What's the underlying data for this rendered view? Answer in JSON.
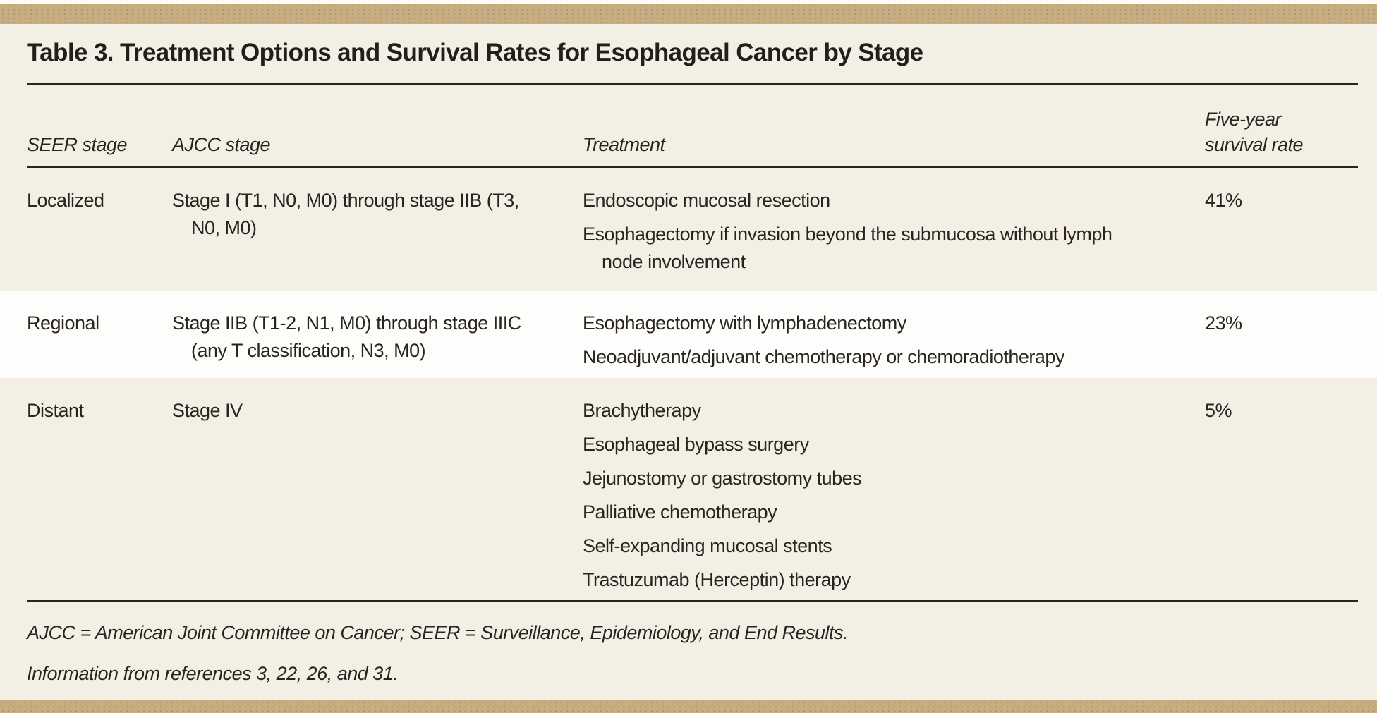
{
  "colors": {
    "page_background": "#f4efe4",
    "accent_bar": "#c8ae7f",
    "highlight_row_background": "#fdfdfb",
    "text": "#2a2421",
    "rule": "#2b2521"
  },
  "table": {
    "title": "Table 3. Treatment Options and Survival Rates for Esophageal Cancer by Stage",
    "columns": {
      "seer": "SEER stage",
      "ajcc": "AJCC stage",
      "treatment": "Treatment",
      "survival": "Five-year survival rate"
    },
    "rows": [
      {
        "seer": "Localized",
        "ajcc": "Stage I (T1, N0, M0) through stage IIB (T3, N0, M0)",
        "treatments": [
          "Endoscopic mucosal resection",
          "Esophagectomy if invasion beyond the submucosa without lymph node involvement"
        ],
        "survival": "41%"
      },
      {
        "seer": "Regional",
        "ajcc": "Stage IIB (T1-2, N1, M0) through stage IIIC (any T classification, N3, M0)",
        "treatments": [
          "Esophagectomy with lymphadenectomy",
          "Neoadjuvant/adjuvant chemotherapy or chemoradiotherapy"
        ],
        "survival": "23%"
      },
      {
        "seer": "Distant",
        "ajcc": "Stage IV",
        "treatments": [
          "Brachytherapy",
          "Esophageal bypass surgery",
          "Jejunostomy or gastrostomy tubes",
          "Palliative chemotherapy",
          "Self-expanding mucosal stents",
          "Trastuzumab (Herceptin) therapy"
        ],
        "survival": "5%"
      }
    ],
    "footnotes": [
      "AJCC = American Joint Committee on Cancer; SEER = Surveillance, Epidemiology, and End Results.",
      "Information from references 3, 22, 26, and 31."
    ]
  }
}
